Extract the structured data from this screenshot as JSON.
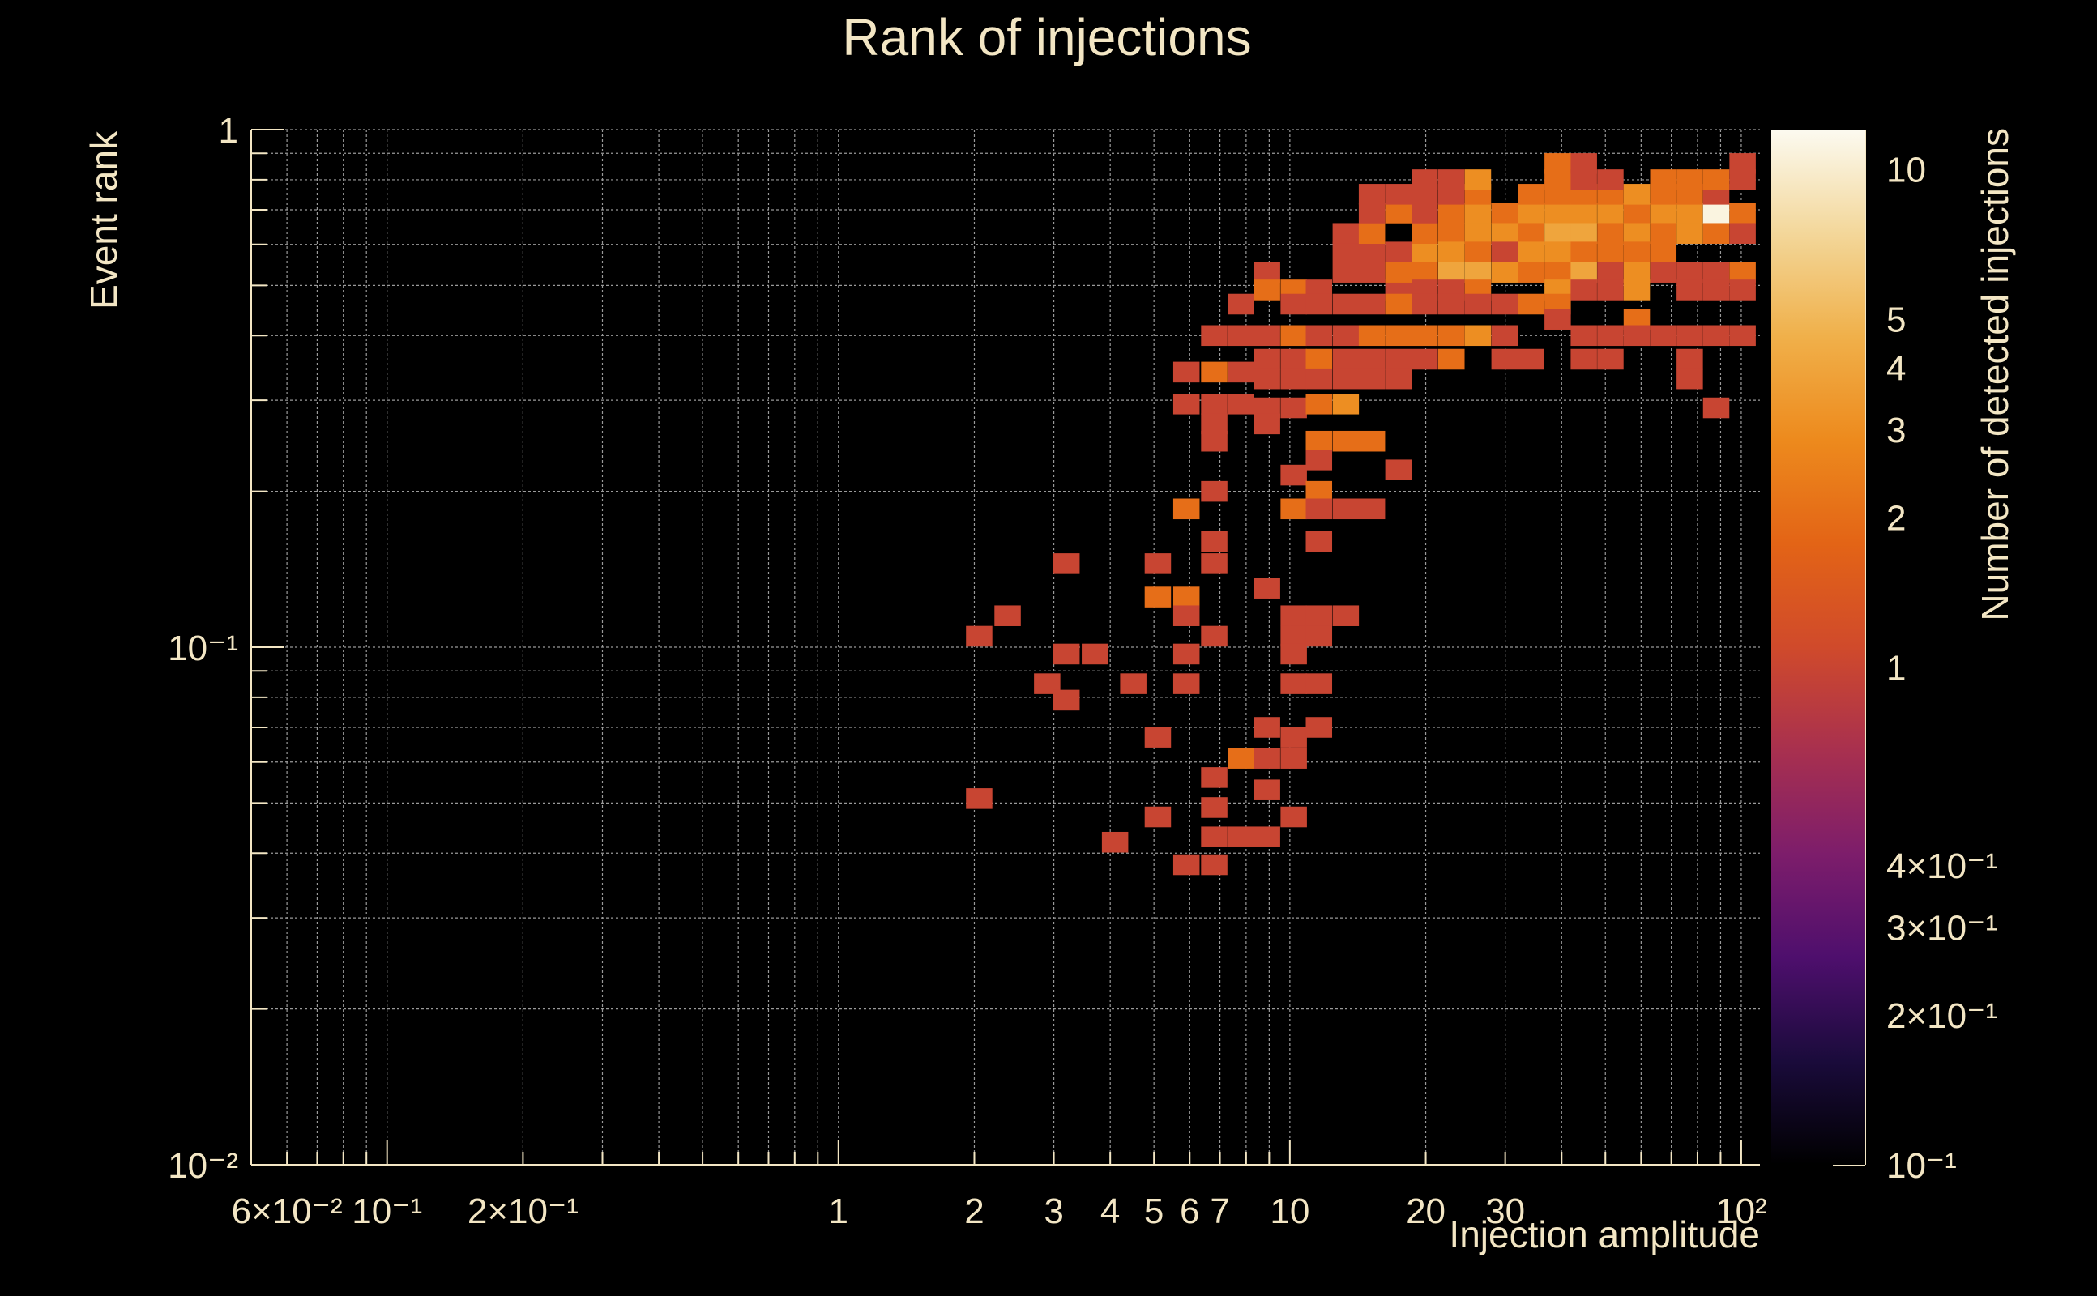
{
  "chart_data": {
    "type": "heatmap",
    "title": "Rank of injections",
    "xlabel": "Injection amplitude",
    "ylabel": "Event rank",
    "zlabel": "Number of detected injections",
    "x_scale": "log",
    "y_scale": "log",
    "z_scale": "log",
    "xlim": [
      0.05,
      110
    ],
    "ylim": [
      0.01,
      1
    ],
    "zlim": [
      0.1,
      12
    ],
    "grid": true,
    "x_ticks": [
      {
        "value": 0.06,
        "label": "6×10⁻²"
      },
      {
        "value": 0.1,
        "label": "10⁻¹"
      },
      {
        "value": 0.2,
        "label": "2×10⁻¹"
      },
      {
        "value": 1,
        "label": "1"
      },
      {
        "value": 2,
        "label": "2"
      },
      {
        "value": 3,
        "label": "3"
      },
      {
        "value": 4,
        "label": "4"
      },
      {
        "value": 5,
        "label": "5"
      },
      {
        "value": 6,
        "label": "6"
      },
      {
        "value": 7,
        "label": "7"
      },
      {
        "value": 10,
        "label": "10"
      },
      {
        "value": 20,
        "label": "20"
      },
      {
        "value": 30,
        "label": "30"
      },
      {
        "value": 100,
        "label": "10²"
      }
    ],
    "y_ticks": [
      {
        "value": 1,
        "label": "1"
      },
      {
        "value": 0.1,
        "label": "10⁻¹"
      },
      {
        "value": 0.01,
        "label": "10⁻²"
      }
    ],
    "z_ticks": [
      {
        "value": 10,
        "label": "10"
      },
      {
        "value": 5,
        "label": "5"
      },
      {
        "value": 4,
        "label": "4"
      },
      {
        "value": 3,
        "label": "3"
      },
      {
        "value": 2,
        "label": "2"
      },
      {
        "value": 1,
        "label": "1"
      },
      {
        "value": 0.4,
        "label": "4×10⁻¹"
      },
      {
        "value": 0.3,
        "label": "3×10⁻¹"
      },
      {
        "value": 0.2,
        "label": "2×10⁻¹"
      },
      {
        "value": 0.1,
        "label": "10⁻¹"
      }
    ],
    "colormap": [
      "#000000",
      "#1a0b3b",
      "#4e0f6d",
      "#7d1d6b",
      "#a8304f",
      "#d04a2b",
      "#e36416",
      "#ed8a1d",
      "#f0b04a",
      "#f3d79a",
      "#fcfaf0"
    ],
    "cells_note_units": "each cell: [x_center, y_center, count]",
    "cells": [
      [
        2.05,
        0.105,
        1
      ],
      [
        2.37,
        0.115,
        1
      ],
      [
        2.05,
        0.051,
        1
      ],
      [
        2.9,
        0.085,
        1
      ],
      [
        3.2,
        0.145,
        1
      ],
      [
        3.2,
        0.097,
        1
      ],
      [
        3.7,
        0.097,
        1
      ],
      [
        3.2,
        0.079,
        1
      ],
      [
        4.5,
        0.085,
        1
      ],
      [
        4.1,
        0.042,
        1
      ],
      [
        5.1,
        0.145,
        1
      ],
      [
        5.1,
        0.067,
        1
      ],
      [
        5.1,
        0.047,
        1
      ],
      [
        5.1,
        0.125,
        2
      ],
      [
        5.9,
        0.125,
        2
      ],
      [
        5.9,
        0.115,
        1
      ],
      [
        5.9,
        0.097,
        1
      ],
      [
        5.9,
        0.085,
        1
      ],
      [
        5.9,
        0.185,
        2
      ],
      [
        5.9,
        0.295,
        1
      ],
      [
        5.9,
        0.34,
        1
      ],
      [
        5.9,
        0.038,
        1
      ],
      [
        6.8,
        0.038,
        1
      ],
      [
        6.8,
        0.4,
        1
      ],
      [
        6.8,
        0.34,
        2
      ],
      [
        6.8,
        0.295,
        1
      ],
      [
        6.8,
        0.27,
        1
      ],
      [
        6.8,
        0.25,
        1
      ],
      [
        6.8,
        0.2,
        1
      ],
      [
        6.8,
        0.16,
        1
      ],
      [
        6.8,
        0.145,
        1
      ],
      [
        6.8,
        0.105,
        1
      ],
      [
        6.8,
        0.056,
        1
      ],
      [
        6.8,
        0.049,
        1
      ],
      [
        6.8,
        0.043,
        1
      ],
      [
        7.8,
        0.4,
        1
      ],
      [
        7.8,
        0.34,
        1
      ],
      [
        7.8,
        0.295,
        1
      ],
      [
        7.8,
        0.043,
        1
      ],
      [
        7.8,
        0.061,
        2
      ],
      [
        8.9,
        0.061,
        1
      ],
      [
        7.8,
        0.46,
        1
      ],
      [
        8.9,
        0.53,
        1
      ],
      [
        8.9,
        0.49,
        2
      ],
      [
        8.9,
        0.4,
        1
      ],
      [
        8.9,
        0.36,
        1
      ],
      [
        8.9,
        0.33,
        1
      ],
      [
        8.9,
        0.29,
        1
      ],
      [
        8.9,
        0.27,
        1
      ],
      [
        8.9,
        0.13,
        1
      ],
      [
        8.9,
        0.07,
        1
      ],
      [
        8.9,
        0.053,
        1
      ],
      [
        8.9,
        0.043,
        1
      ],
      [
        10.2,
        0.49,
        2
      ],
      [
        10.2,
        0.46,
        1
      ],
      [
        10.2,
        0.4,
        2
      ],
      [
        10.2,
        0.36,
        1
      ],
      [
        10.2,
        0.33,
        1
      ],
      [
        10.2,
        0.29,
        1
      ],
      [
        10.2,
        0.215,
        1
      ],
      [
        10.2,
        0.185,
        2
      ],
      [
        10.2,
        0.115,
        1
      ],
      [
        10.2,
        0.105,
        1
      ],
      [
        10.2,
        0.097,
        1
      ],
      [
        10.2,
        0.085,
        1
      ],
      [
        10.2,
        0.067,
        1
      ],
      [
        10.2,
        0.061,
        1
      ],
      [
        10.2,
        0.047,
        1
      ],
      [
        11.6,
        0.49,
        1
      ],
      [
        11.6,
        0.46,
        1
      ],
      [
        11.6,
        0.4,
        1
      ],
      [
        11.6,
        0.36,
        2
      ],
      [
        11.6,
        0.33,
        1
      ],
      [
        11.6,
        0.295,
        2
      ],
      [
        11.6,
        0.25,
        2
      ],
      [
        11.6,
        0.23,
        1
      ],
      [
        11.6,
        0.2,
        2
      ],
      [
        11.6,
        0.185,
        1
      ],
      [
        11.6,
        0.16,
        1
      ],
      [
        11.6,
        0.115,
        1
      ],
      [
        11.6,
        0.105,
        1
      ],
      [
        11.6,
        0.085,
        1
      ],
      [
        11.6,
        0.07,
        1
      ],
      [
        13.3,
        0.46,
        1
      ],
      [
        13.3,
        0.4,
        1
      ],
      [
        13.3,
        0.36,
        1
      ],
      [
        13.3,
        0.33,
        1
      ],
      [
        13.3,
        0.295,
        3
      ],
      [
        13.3,
        0.25,
        2
      ],
      [
        13.3,
        0.185,
        1
      ],
      [
        13.3,
        0.53,
        1
      ],
      [
        13.3,
        0.58,
        1
      ],
      [
        13.3,
        0.63,
        1
      ],
      [
        13.3,
        0.115,
        1
      ],
      [
        15.2,
        0.46,
        1
      ],
      [
        15.2,
        0.4,
        2
      ],
      [
        15.2,
        0.36,
        1
      ],
      [
        15.2,
        0.33,
        1
      ],
      [
        15.2,
        0.25,
        2
      ],
      [
        15.2,
        0.53,
        1
      ],
      [
        15.2,
        0.58,
        1
      ],
      [
        15.2,
        0.63,
        2
      ],
      [
        15.2,
        0.69,
        1
      ],
      [
        15.2,
        0.75,
        1
      ],
      [
        15.2,
        0.185,
        1
      ],
      [
        17.4,
        0.49,
        1
      ],
      [
        17.4,
        0.46,
        2
      ],
      [
        17.4,
        0.4,
        2
      ],
      [
        17.4,
        0.36,
        1
      ],
      [
        17.4,
        0.33,
        1
      ],
      [
        17.4,
        0.53,
        2
      ],
      [
        17.4,
        0.58,
        1
      ],
      [
        17.4,
        0.69,
        2
      ],
      [
        17.4,
        0.75,
        1
      ],
      [
        17.4,
        0.22,
        1
      ],
      [
        19.9,
        0.58,
        3
      ],
      [
        19.9,
        0.53,
        2
      ],
      [
        19.9,
        0.49,
        1
      ],
      [
        19.9,
        0.46,
        1
      ],
      [
        19.9,
        0.4,
        2
      ],
      [
        19.9,
        0.36,
        1
      ],
      [
        19.9,
        0.63,
        2
      ],
      [
        19.9,
        0.69,
        1
      ],
      [
        19.9,
        0.75,
        1
      ],
      [
        19.9,
        0.8,
        1
      ],
      [
        22.8,
        0.63,
        2
      ],
      [
        22.8,
        0.58,
        3
      ],
      [
        22.8,
        0.53,
        4
      ],
      [
        22.8,
        0.49,
        1
      ],
      [
        22.8,
        0.46,
        1
      ],
      [
        22.8,
        0.4,
        2
      ],
      [
        22.8,
        0.36,
        2
      ],
      [
        22.8,
        0.69,
        2
      ],
      [
        22.8,
        0.75,
        1
      ],
      [
        22.8,
        0.8,
        1
      ],
      [
        26.1,
        0.69,
        3
      ],
      [
        26.1,
        0.63,
        3
      ],
      [
        26.1,
        0.58,
        2
      ],
      [
        26.1,
        0.53,
        4
      ],
      [
        26.1,
        0.49,
        2
      ],
      [
        26.1,
        0.46,
        1
      ],
      [
        26.1,
        0.4,
        3
      ],
      [
        26.1,
        0.75,
        2
      ],
      [
        26.1,
        0.8,
        3
      ],
      [
        29.9,
        0.69,
        2
      ],
      [
        29.9,
        0.63,
        3
      ],
      [
        29.9,
        0.58,
        1
      ],
      [
        29.9,
        0.53,
        3
      ],
      [
        29.9,
        0.46,
        1
      ],
      [
        29.9,
        0.4,
        1
      ],
      [
        29.9,
        0.36,
        1
      ],
      [
        34.2,
        0.69,
        3
      ],
      [
        34.2,
        0.63,
        2
      ],
      [
        34.2,
        0.58,
        3
      ],
      [
        34.2,
        0.53,
        2
      ],
      [
        34.2,
        0.46,
        2
      ],
      [
        34.2,
        0.36,
        1
      ],
      [
        34.2,
        0.75,
        2
      ],
      [
        39.2,
        0.69,
        3
      ],
      [
        39.2,
        0.63,
        4
      ],
      [
        39.2,
        0.58,
        3
      ],
      [
        39.2,
        0.53,
        2
      ],
      [
        39.2,
        0.49,
        3
      ],
      [
        39.2,
        0.46,
        2
      ],
      [
        39.2,
        0.43,
        1
      ],
      [
        39.2,
        0.75,
        2
      ],
      [
        39.2,
        0.8,
        2
      ],
      [
        39.2,
        0.86,
        2
      ],
      [
        44.8,
        0.69,
        3
      ],
      [
        44.8,
        0.63,
        4
      ],
      [
        44.8,
        0.58,
        2
      ],
      [
        44.8,
        0.53,
        4
      ],
      [
        44.8,
        0.49,
        1
      ],
      [
        44.8,
        0.4,
        1
      ],
      [
        44.8,
        0.36,
        1
      ],
      [
        44.8,
        0.75,
        2
      ],
      [
        44.8,
        0.8,
        1
      ],
      [
        44.8,
        0.86,
        1
      ],
      [
        51.3,
        0.69,
        3
      ],
      [
        51.3,
        0.63,
        2
      ],
      [
        51.3,
        0.58,
        2
      ],
      [
        51.3,
        0.53,
        1
      ],
      [
        51.3,
        0.49,
        1
      ],
      [
        51.3,
        0.4,
        1
      ],
      [
        51.3,
        0.36,
        1
      ],
      [
        51.3,
        0.75,
        2
      ],
      [
        51.3,
        0.8,
        1
      ],
      [
        58.7,
        0.69,
        2
      ],
      [
        58.7,
        0.63,
        3
      ],
      [
        58.7,
        0.58,
        2
      ],
      [
        58.7,
        0.53,
        3
      ],
      [
        58.7,
        0.49,
        3
      ],
      [
        58.7,
        0.43,
        2
      ],
      [
        58.7,
        0.4,
        1
      ],
      [
        58.7,
        0.75,
        3
      ],
      [
        67.2,
        0.69,
        3
      ],
      [
        67.2,
        0.63,
        2
      ],
      [
        67.2,
        0.58,
        2
      ],
      [
        67.2,
        0.53,
        1
      ],
      [
        67.2,
        0.4,
        1
      ],
      [
        67.2,
        0.75,
        2
      ],
      [
        67.2,
        0.8,
        2
      ],
      [
        76.9,
        0.69,
        3
      ],
      [
        76.9,
        0.63,
        3
      ],
      [
        76.9,
        0.53,
        1
      ],
      [
        76.9,
        0.49,
        1
      ],
      [
        76.9,
        0.4,
        1
      ],
      [
        76.9,
        0.36,
        1
      ],
      [
        76.9,
        0.33,
        1
      ],
      [
        76.9,
        0.75,
        2
      ],
      [
        76.9,
        0.8,
        2
      ],
      [
        88.0,
        0.69,
        11
      ],
      [
        88.0,
        0.63,
        2
      ],
      [
        88.0,
        0.53,
        1
      ],
      [
        88.0,
        0.49,
        1
      ],
      [
        88.0,
        0.4,
        1
      ],
      [
        88.0,
        0.29,
        1
      ],
      [
        88.0,
        0.75,
        1
      ],
      [
        88.0,
        0.8,
        2
      ],
      [
        100.7,
        0.69,
        2
      ],
      [
        100.7,
        0.63,
        1
      ],
      [
        100.7,
        0.53,
        2
      ],
      [
        100.7,
        0.49,
        1
      ],
      [
        100.7,
        0.4,
        1
      ],
      [
        100.7,
        0.8,
        1
      ],
      [
        100.7,
        0.86,
        1
      ]
    ]
  }
}
